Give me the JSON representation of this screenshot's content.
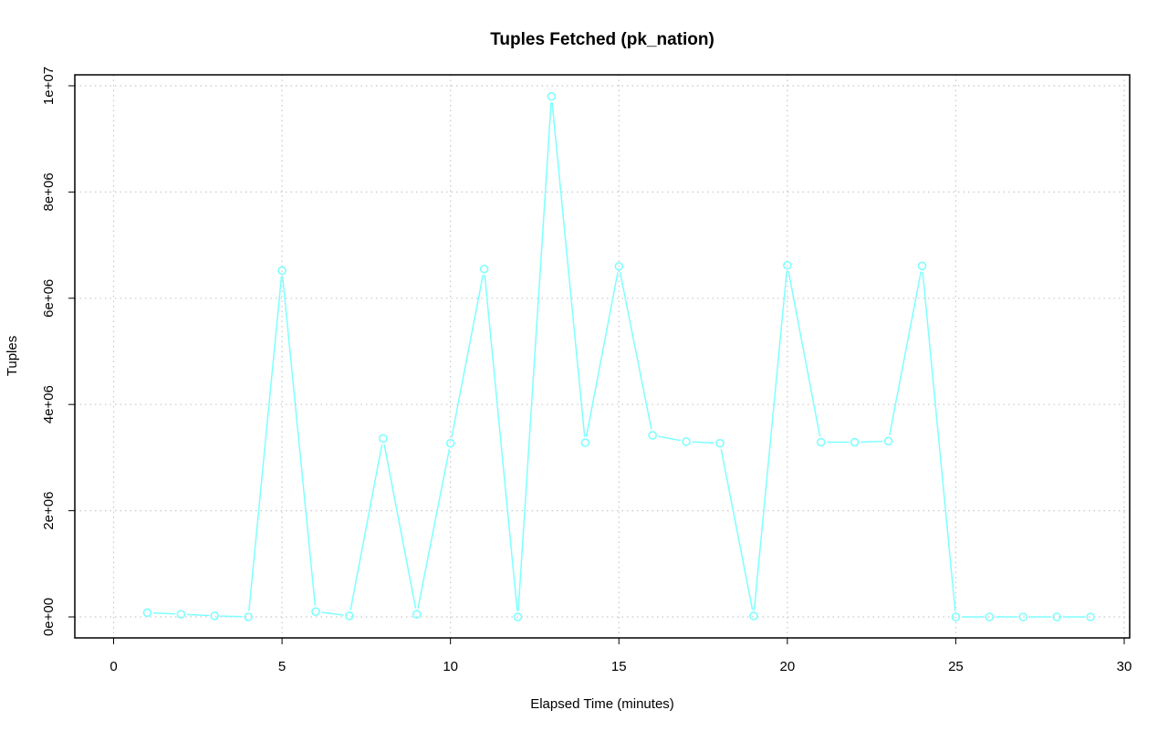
{
  "chart_data": {
    "type": "line",
    "title": "Tuples Fetched (pk_nation)",
    "xlabel": "Elapsed Time (minutes)",
    "ylabel": "Tuples",
    "xlim": [
      0,
      30
    ],
    "ylim": [
      0,
      10000000
    ],
    "x_ticks": [
      0,
      5,
      10,
      15,
      20,
      25,
      30
    ],
    "x_tick_labels": [
      "0",
      "5",
      "10",
      "15",
      "20",
      "25",
      "30"
    ],
    "y_ticks": [
      0,
      2000000,
      4000000,
      6000000,
      8000000,
      10000000
    ],
    "y_tick_labels": [
      "0e+00",
      "2e+06",
      "4e+06",
      "6e+06",
      "8e+06",
      "1e+07"
    ],
    "grid": true,
    "legend": "none",
    "series": [
      {
        "color": "#7fffff",
        "marker": "open-circle",
        "x": [
          1,
          2,
          3,
          4,
          5,
          6,
          7,
          8,
          9,
          10,
          11,
          12,
          13,
          14,
          15,
          16,
          17,
          18,
          19,
          20,
          21,
          22,
          23,
          24,
          25,
          26,
          27,
          28,
          29
        ],
        "y": [
          80000,
          50000,
          20000,
          0,
          6520000,
          100000,
          20000,
          3360000,
          50000,
          3270000,
          6550000,
          0,
          9800000,
          3280000,
          6600000,
          3420000,
          3300000,
          3270000,
          20000,
          6620000,
          3290000,
          3290000,
          3310000,
          6610000,
          0,
          0,
          0,
          0,
          0
        ]
      }
    ]
  }
}
